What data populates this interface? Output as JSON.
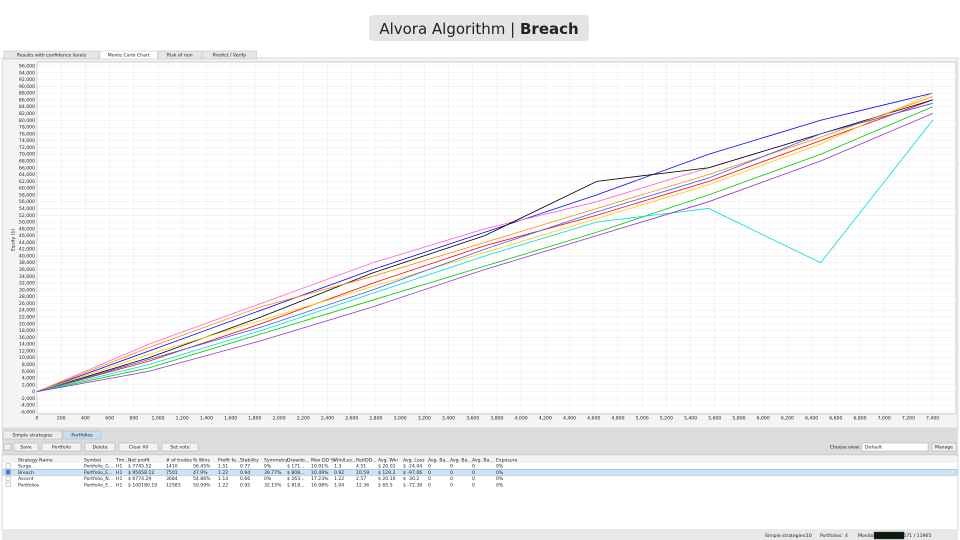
{
  "header": {
    "title": "Alvora Algorithm | ",
    "title_bold": "Breach"
  },
  "tabs": [
    "Results with confidence levels",
    "Monte Carlo Chart",
    "Risk of ruin",
    "Predict / Verify"
  ],
  "chart_data": {
    "type": "line",
    "ylabel": "Equity ($)",
    "x": [
      0,
      925,
      1850,
      2775,
      3700,
      4625,
      5550,
      6475,
      7400
    ],
    "xlim": [
      0,
      7560
    ],
    "ylim": [
      -6000,
      96000
    ],
    "xticks": [
      0,
      200,
      400,
      600,
      800,
      {
        "value": 1000,
        "label": "1,000"
      },
      {
        "value": 1200,
        "label": "1,200"
      },
      {
        "value": 1400,
        "label": "1,400"
      },
      {
        "value": 1600,
        "label": "1,600"
      },
      {
        "value": 1800,
        "label": "1,800"
      },
      {
        "value": 2000,
        "label": "2,000"
      },
      {
        "value": 2200,
        "label": "2,200"
      },
      {
        "value": 2400,
        "label": "2,400"
      },
      {
        "value": 2600,
        "label": "2,600"
      },
      {
        "value": 2800,
        "label": "2,800"
      },
      {
        "value": 3000,
        "label": "3,000"
      },
      {
        "value": 3200,
        "label": "3,200"
      },
      {
        "value": 3400,
        "label": "3,400"
      },
      {
        "value": 3600,
        "label": "3,600"
      },
      {
        "value": 3800,
        "label": "3,800"
      },
      {
        "value": 4000,
        "label": "4,000"
      },
      {
        "value": 4200,
        "label": "4,200"
      },
      {
        "value": 4400,
        "label": "4,400"
      },
      {
        "value": 4600,
        "label": "4,600"
      },
      {
        "value": 4800,
        "label": "4,800"
      },
      {
        "value": 5000,
        "label": "5,000"
      },
      {
        "value": 5200,
        "label": "5,200"
      },
      {
        "value": 5400,
        "label": "5,400"
      },
      {
        "value": 5600,
        "label": "5,600"
      },
      {
        "value": 5800,
        "label": "5,800"
      },
      {
        "value": 6000,
        "label": "6,000"
      },
      {
        "value": 6200,
        "label": "6,200"
      },
      {
        "value": 6400,
        "label": "6,400"
      },
      {
        "value": 6600,
        "label": "6,600"
      },
      {
        "value": 6800,
        "label": "6,800"
      },
      {
        "value": 7000,
        "label": "7,000"
      },
      {
        "value": 7200,
        "label": "7,200"
      },
      {
        "value": 7400,
        "label": "7,400"
      }
    ],
    "yticks": [
      {
        "value": -6000,
        "label": "-6,000"
      },
      {
        "value": -4000,
        "label": "-4,000"
      },
      {
        "value": -2000,
        "label": "-2,000"
      },
      0,
      {
        "value": 2000,
        "label": "2,000"
      },
      {
        "value": 4000,
        "label": "4,000"
      },
      {
        "value": 6000,
        "label": "6,000"
      },
      {
        "value": 8000,
        "label": "8,000"
      },
      {
        "value": 10000,
        "label": "10,000"
      },
      {
        "value": 12000,
        "label": "12,000"
      },
      {
        "value": 14000,
        "label": "14,000"
      },
      {
        "value": 16000,
        "label": "16,000"
      },
      {
        "value": 18000,
        "label": "18,000"
      },
      {
        "value": 20000,
        "label": "20,000"
      },
      {
        "value": 22000,
        "label": "22,000"
      },
      {
        "value": 24000,
        "label": "24,000"
      },
      {
        "value": 26000,
        "label": "26,000"
      },
      {
        "value": 28000,
        "label": "28,000"
      },
      {
        "value": 30000,
        "label": "30,000"
      },
      {
        "value": 32000,
        "label": "32,000"
      },
      {
        "value": 34000,
        "label": "34,000"
      },
      {
        "value": 36000,
        "label": "36,000"
      },
      {
        "value": 38000,
        "label": "38,000"
      },
      {
        "value": 40000,
        "label": "40,000"
      },
      {
        "value": 42000,
        "label": "42,000"
      },
      {
        "value": 44000,
        "label": "44,000"
      },
      {
        "value": 46000,
        "label": "46,000"
      },
      {
        "value": 48000,
        "label": "48,000"
      },
      {
        "value": 50000,
        "label": "50,000"
      },
      {
        "value": 52000,
        "label": "52,000"
      },
      {
        "value": 54000,
        "label": "54,000"
      },
      {
        "value": 56000,
        "label": "56,000"
      },
      {
        "value": 58000,
        "label": "58,000"
      },
      {
        "value": 60000,
        "label": "60,000"
      },
      {
        "value": 62000,
        "label": "62,000"
      },
      {
        "value": 64000,
        "label": "64,000"
      },
      {
        "value": 66000,
        "label": "66,000"
      },
      {
        "value": 68000,
        "label": "68,000"
      },
      {
        "value": 70000,
        "label": "70,000"
      },
      {
        "value": 72000,
        "label": "72,000"
      },
      {
        "value": 74000,
        "label": "74,000"
      },
      {
        "value": 76000,
        "label": "76,000"
      },
      {
        "value": 78000,
        "label": "78,000"
      },
      {
        "value": 80000,
        "label": "80,000"
      },
      {
        "value": 82000,
        "label": "82,000"
      },
      {
        "value": 84000,
        "label": "84,000"
      },
      {
        "value": 86000,
        "label": "86,000"
      },
      {
        "value": 88000,
        "label": "88,000"
      },
      {
        "value": 90000,
        "label": "90,000"
      },
      {
        "value": 92000,
        "label": "92,000"
      },
      {
        "value": 94000,
        "label": "94,000"
      },
      {
        "value": 96000,
        "label": "96,000"
      }
    ],
    "grid": true,
    "series": [
      {
        "color": "#ff0000",
        "values": [
          0,
          9000,
          20000,
          32000,
          43000,
          52000,
          62000,
          74000,
          86000
        ]
      },
      {
        "color": "#0000ff",
        "values": [
          0,
          12000,
          24000,
          36000,
          47000,
          58000,
          70000,
          80000,
          88000
        ]
      },
      {
        "color": "#00cc00",
        "values": [
          0,
          7000,
          17000,
          27000,
          37000,
          47000,
          58000,
          70000,
          84000
        ]
      },
      {
        "color": "#ff66cc",
        "values": [
          0,
          14000,
          26000,
          38000,
          48000,
          56000,
          66000,
          76000,
          85000
        ]
      },
      {
        "color": "#00dddd",
        "values": [
          0,
          8000,
          18000,
          29000,
          40000,
          50000,
          54000,
          38000,
          80000
        ]
      },
      {
        "color": "#000000",
        "values": [
          0,
          10000,
          22000,
          35000,
          46000,
          62000,
          66000,
          76000,
          86000
        ]
      },
      {
        "color": "#ffcc00",
        "values": [
          0,
          11000,
          21000,
          31000,
          41000,
          51000,
          61000,
          73000,
          88000
        ]
      },
      {
        "color": "#9933cc",
        "values": [
          0,
          6000,
          15000,
          25000,
          36000,
          46000,
          56000,
          68000,
          82000
        ]
      },
      {
        "color": "#ff8800",
        "values": [
          0,
          13000,
          25000,
          34000,
          44000,
          54000,
          64000,
          75000,
          87000
        ]
      },
      {
        "color": "#3366ff",
        "values": [
          0,
          9500,
          19000,
          30000,
          42000,
          53000,
          63000,
          76000,
          85000
        ]
      }
    ]
  },
  "panel": {
    "tabs": [
      "Simple strategies",
      "Portfolios"
    ],
    "buttons": [
      "Save",
      "Portfolio",
      "Delete",
      "Clear All",
      "Set note"
    ],
    "view_label": "Choose view:",
    "view_value": "Default",
    "manage": "Manage",
    "table": {
      "headers": [
        "Strategy Name",
        "Symbol",
        "Tim...",
        "Net profit",
        "# of trades",
        "% Wins",
        "Profit fa...",
        "Stability",
        "Symmetry",
        "Drawdo...",
        "Max DD %",
        "Win/Los...",
        "Ret/DD...",
        "Avg. Win",
        "Avg. Loss",
        "Avg. Ba...",
        "Avg. Ba...",
        "Avg. Ba...",
        "Exposure"
      ],
      "rows": [
        [
          "Surge",
          "Portfolio_G...",
          "H1",
          "$ 7745.52",
          "1410",
          "56.45%",
          "1.51",
          "0.77",
          "0%",
          "$ 171...",
          "10.91%",
          "1.3",
          "4.51",
          "$ 20.01",
          "$ -24.04",
          "0",
          "0",
          "0",
          "0%"
        ],
        [
          "Breach",
          "Portfolio_E...",
          "H1",
          "$ 95658.12",
          "7501",
          "47.9%",
          "1.22",
          "0.94",
          "39.77%",
          "$ 808...",
          "10.49%",
          "0.92",
          "10.59",
          "$ 129.2",
          "$ -97.06",
          "0",
          "0",
          "0",
          "0%"
        ],
        [
          "Ascent",
          "Portfolio_N...",
          "H1",
          "$ 6774.29",
          "3684",
          "54.86%",
          "1.14",
          "0.66",
          "0%",
          "$ 263...",
          "17.23%",
          "1.22",
          "2.57",
          "$ 20.16",
          "$ -30.2",
          "0",
          "0",
          "0",
          "0%"
        ],
        [
          "Portfolios",
          "Portfolio_E...",
          "H1",
          "$ 100180.19",
          "12583",
          "50.99%",
          "1.22",
          "0.95",
          "32.15%",
          "$ 818...",
          "16.98%",
          "1.04",
          "12.36",
          "$ 65.5",
          "$ -72.38",
          "0",
          "0",
          "0",
          "0%"
        ]
      ]
    },
    "status": [
      "Simple strategies:",
      "10",
      "Portfolios:",
      "4",
      "Monitor:",
      "Used: 3571 / 11965"
    ]
  }
}
